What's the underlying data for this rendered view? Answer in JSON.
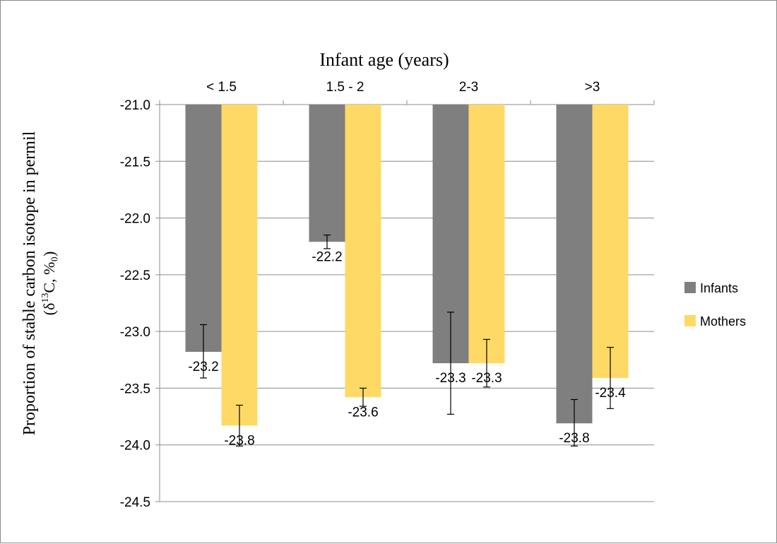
{
  "chart_data": {
    "type": "bar",
    "xlabel": "Infant age (years)",
    "ylabel_line1": "Proportion of stable carbon isotope in permil",
    "ylabel_line2": {
      "prefix": "(δ",
      "superscript": "13",
      "suffix": "C, %₀)"
    },
    "categories": [
      "< 1.5",
      "1.5 - 2",
      "2-3",
      ">3"
    ],
    "y_ticks": [
      "-21.0",
      "-21.5",
      "-22.0",
      "-22.5",
      "-23.0",
      "-23.5",
      "-24.0",
      "-24.5"
    ],
    "ylim": [
      -24.5,
      -21.0
    ],
    "bar_baseline": -21.0,
    "grid": true,
    "legend_position": "right",
    "series": [
      {
        "name": "Infants",
        "color": "#7f7f7f",
        "values": [
          -23.18,
          -22.21,
          -23.28,
          -23.81
        ],
        "labels": [
          "-23.2",
          "-22.2",
          "-23.3",
          "-23.8"
        ],
        "error_low": [
          -23.41,
          -22.27,
          -23.73,
          -24.01
        ],
        "error_high": [
          -22.94,
          -22.15,
          -22.83,
          -23.6
        ]
      },
      {
        "name": "Mothers",
        "color": "#ffd966",
        "values": [
          -23.83,
          -23.58,
          -23.28,
          -23.41
        ],
        "labels": [
          "-23.8",
          "-23.6",
          "-23.3",
          "-23.4"
        ],
        "error_low": [
          -24.01,
          -23.66,
          -23.49,
          -23.68
        ],
        "error_high": [
          -23.65,
          -23.5,
          -23.07,
          -23.14
        ]
      }
    ]
  }
}
